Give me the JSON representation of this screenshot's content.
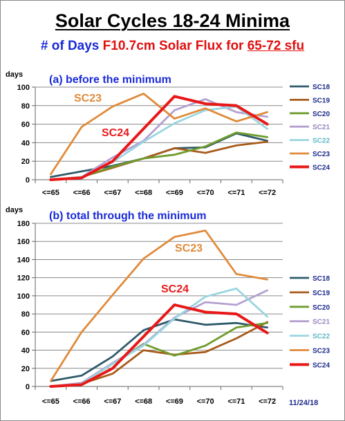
{
  "header": {
    "title": "Solar Cycles 18-24 Minima",
    "subtitle_part1": "# of Days",
    "subtitle_part2": "F10.7cm Solar Flux for",
    "subtitle_part3": "65-72 sfu"
  },
  "footer_date": "11/24/18",
  "colors": {
    "SC18": "#2f5a6b",
    "SC19": "#a85a1a",
    "SC20": "#6e9c2c",
    "SC21": "#b4a0d0",
    "SC22": "#98d6e0",
    "SC23": "#e08a3a",
    "SC24": "#e81818"
  },
  "chart_data": [
    {
      "type": "line",
      "title": "(a) before the minimum",
      "ylabel": "days",
      "ylim": [
        0,
        100
      ],
      "yticks": [
        0,
        20,
        40,
        60,
        80,
        100
      ],
      "categories": [
        "<=65",
        "<=66",
        "<=67",
        "<=68",
        "<=69",
        "<=70",
        "<=71",
        "<=72"
      ],
      "grid": true,
      "legend_position": "right",
      "series": [
        {
          "name": "SC18",
          "values": [
            3,
            9,
            15,
            23,
            34,
            35,
            50,
            42
          ]
        },
        {
          "name": "SC19",
          "values": [
            0,
            3,
            13,
            23,
            34,
            29,
            37,
            41
          ]
        },
        {
          "name": "SC20",
          "values": [
            0,
            3,
            14,
            23,
            27,
            36,
            51,
            46
          ]
        },
        {
          "name": "SC21",
          "values": [
            0,
            3,
            24,
            42,
            75,
            87,
            73,
            68
          ]
        },
        {
          "name": "SC22",
          "values": [
            0,
            3,
            19,
            41,
            61,
            75,
            79,
            55
          ]
        },
        {
          "name": "SC23",
          "values": [
            6,
            57,
            79,
            93,
            66,
            77,
            63,
            73
          ]
        },
        {
          "name": "SC24",
          "values": [
            0,
            2,
            20,
            55,
            90,
            82,
            80,
            60
          ]
        }
      ],
      "annotations": [
        {
          "text": "SC23",
          "series": "SC23"
        },
        {
          "text": "SC24",
          "series": "SC24"
        }
      ]
    },
    {
      "type": "line",
      "title": "(b) total through the minimum",
      "ylabel": "days",
      "ylim": [
        0,
        180
      ],
      "yticks": [
        0,
        20,
        40,
        60,
        80,
        100,
        120,
        140,
        160,
        180
      ],
      "categories": [
        "<=65",
        "<=66",
        "<=67",
        "<=68",
        "<=69",
        "<=70",
        "<=71",
        "<=72"
      ],
      "grid": true,
      "legend_position": "right",
      "series": [
        {
          "name": "SC18",
          "values": [
            6,
            12,
            33,
            62,
            74,
            68,
            70,
            65
          ]
        },
        {
          "name": "SC19",
          "values": [
            0,
            3,
            14,
            40,
            35,
            38,
            53,
            71
          ]
        },
        {
          "name": "SC20",
          "values": [
            0,
            3,
            25,
            47,
            34,
            45,
            65,
            70
          ]
        },
        {
          "name": "SC21",
          "values": [
            0,
            4,
            26,
            46,
            76,
            93,
            90,
            106
          ]
        },
        {
          "name": "SC22",
          "values": [
            0,
            3,
            25,
            45,
            75,
            99,
            108,
            77
          ]
        },
        {
          "name": "SC23",
          "values": [
            6,
            60,
            101,
            141,
            165,
            172,
            124,
            118
          ]
        },
        {
          "name": "SC24",
          "values": [
            0,
            2,
            20,
            55,
            90,
            82,
            80,
            59
          ]
        }
      ],
      "annotations": [
        {
          "text": "SC23",
          "series": "SC23"
        },
        {
          "text": "SC24",
          "series": "SC24"
        }
      ]
    }
  ]
}
